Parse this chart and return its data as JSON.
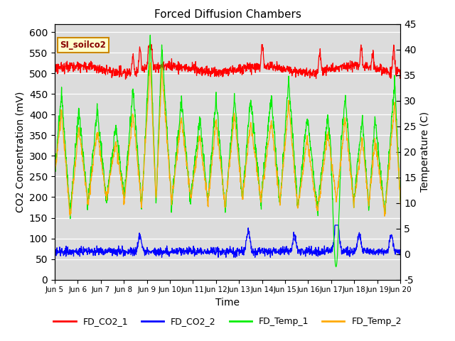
{
  "title": "Forced Diffusion Chambers",
  "ylabel_left": "CO2 Concentration (mV)",
  "ylabel_right": "Temperature (C)",
  "xlabel": "Time",
  "ylim_left": [
    0,
    620
  ],
  "ylim_right": [
    -5,
    45
  ],
  "yticks_left": [
    0,
    50,
    100,
    150,
    200,
    250,
    300,
    350,
    400,
    450,
    500,
    550,
    600
  ],
  "yticks_right": [
    -5,
    0,
    5,
    10,
    15,
    20,
    25,
    30,
    35,
    40,
    45
  ],
  "annotation_text": "SI_soilco2",
  "colors": {
    "FD_CO2_1": "#ff0000",
    "FD_CO2_2": "#0000ff",
    "FD_Temp_1": "#00ee00",
    "FD_Temp_2": "#ffaa00"
  },
  "bg_color": "#dcdcdc",
  "xtick_days": [
    5,
    6,
    7,
    8,
    9,
    10,
    11,
    12,
    13,
    14,
    15,
    16,
    17,
    18,
    19,
    20
  ]
}
